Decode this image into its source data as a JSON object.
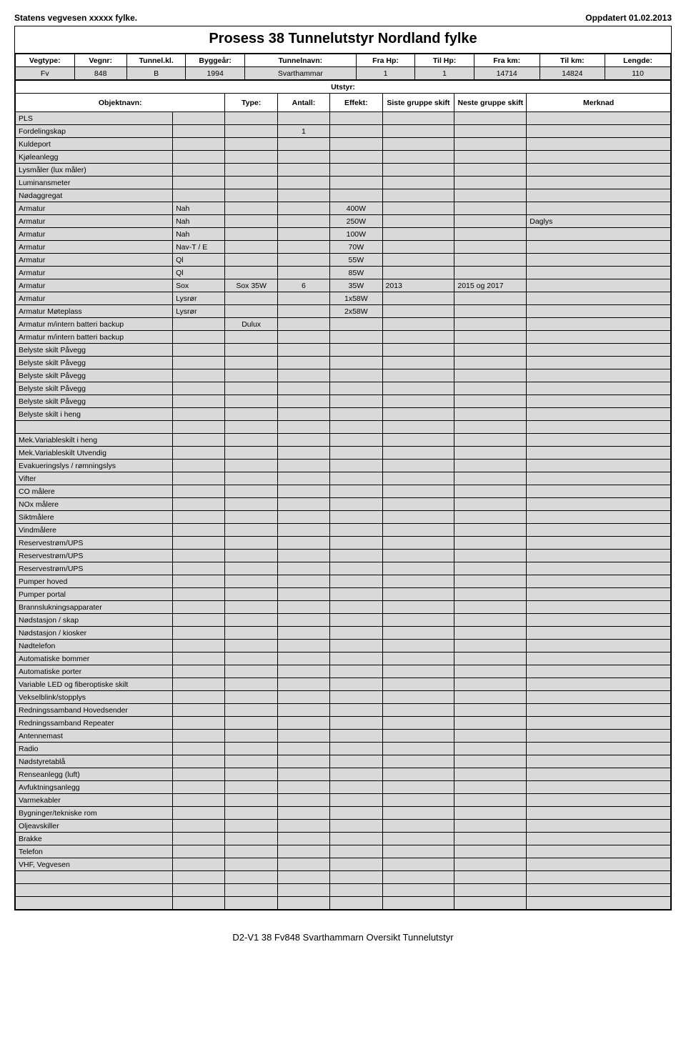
{
  "header_left": "Statens vegvesen xxxxx fylke.",
  "header_right": "Oppdatert 01.02.2013",
  "title": "Prosess 38 Tunnelutstyr Nordland fylke",
  "meta_headers": [
    "Vegtype:",
    "Vegnr:",
    "Tunnel.kl.",
    "Byggeår:",
    "Tunnelnavn:",
    "Fra Hp:",
    "Til Hp:",
    "Fra km:",
    "Til km:",
    "Lengde:"
  ],
  "meta_values": [
    "Fv",
    "848",
    "B",
    "1994",
    "Svarthammar",
    "1",
    "1",
    "14714",
    "14824",
    "110"
  ],
  "section_utstyr": "Utstyr:",
  "col_headers": [
    "Objektnavn:",
    "Type:",
    "Antall:",
    "Effekt:",
    "Siste gruppe skift",
    "Neste gruppe skift",
    "Merknad"
  ],
  "rows": [
    {
      "c": [
        "PLS",
        "",
        "",
        "",
        "",
        "",
        "",
        ""
      ]
    },
    {
      "c": [
        "Fordelingskap",
        "",
        "",
        "1",
        "",
        "",
        "",
        ""
      ]
    },
    {
      "c": [
        "Kuldeport",
        "",
        "",
        "",
        "",
        "",
        "",
        ""
      ]
    },
    {
      "c": [
        "Kjøleanlegg",
        "",
        "",
        "",
        "",
        "",
        "",
        ""
      ]
    },
    {
      "c": [
        "Lysmåler (lux måler)",
        "",
        "",
        "",
        "",
        "",
        "",
        ""
      ]
    },
    {
      "c": [
        "Luminansmeter",
        "",
        "",
        "",
        "",
        "",
        "",
        ""
      ]
    },
    {
      "c": [
        "Nødaggregat",
        "",
        "",
        "",
        "",
        "",
        "",
        ""
      ]
    },
    {
      "c": [
        "Armatur",
        "Nah",
        "",
        "",
        "400W",
        "",
        "",
        ""
      ]
    },
    {
      "c": [
        "Armatur",
        "Nah",
        "",
        "",
        "250W",
        "",
        "",
        "Daglys"
      ]
    },
    {
      "c": [
        "Armatur",
        "Nah",
        "",
        "",
        "100W",
        "",
        "",
        ""
      ]
    },
    {
      "c": [
        "Armatur",
        "Nav-T / E",
        "",
        "",
        "70W",
        "",
        "",
        ""
      ]
    },
    {
      "c": [
        "Armatur",
        "Ql",
        "",
        "",
        "55W",
        "",
        "",
        ""
      ]
    },
    {
      "c": [
        "Armatur",
        "Ql",
        "",
        "",
        "85W",
        "",
        "",
        ""
      ]
    },
    {
      "c": [
        "Armatur",
        "Sox",
        "Sox 35W",
        "6",
        "35W",
        "2013",
        "2015 og 2017",
        ""
      ]
    },
    {
      "c": [
        "Armatur",
        "Lysrør",
        "",
        "",
        "1x58W",
        "",
        "",
        ""
      ]
    },
    {
      "c": [
        "Armatur      Møteplass",
        "Lysrør",
        "",
        "",
        "2x58W",
        "",
        "",
        ""
      ]
    },
    {
      "c": [
        "Armatur m/intern batteri backup",
        "",
        "Dulux",
        "",
        "",
        "",
        "",
        ""
      ]
    },
    {
      "c": [
        "Armatur m/intern batteri backup",
        "",
        "",
        "",
        "",
        "",
        "",
        ""
      ]
    },
    {
      "c": [
        "Belyste skilt          Påvegg",
        "",
        "",
        "",
        "",
        "",
        "",
        ""
      ]
    },
    {
      "c": [
        "Belyste skilt          Påvegg",
        "",
        "",
        "",
        "",
        "",
        "",
        ""
      ]
    },
    {
      "c": [
        "Belyste skilt          Påvegg",
        "",
        "",
        "",
        "",
        "",
        "",
        ""
      ]
    },
    {
      "c": [
        "Belyste skilt          Påvegg",
        "",
        "",
        "",
        "",
        "",
        "",
        ""
      ]
    },
    {
      "c": [
        "Belyste skilt          Påvegg",
        "",
        "",
        "",
        "",
        "",
        "",
        ""
      ]
    },
    {
      "c": [
        "Belyste skilt          i heng",
        "",
        "",
        "",
        "",
        "",
        "",
        ""
      ]
    },
    {
      "c": [
        "",
        "",
        "",
        "",
        "",
        "",
        "",
        ""
      ]
    },
    {
      "c": [
        "Mek.Variableskilt     i heng",
        "",
        "",
        "",
        "",
        "",
        "",
        ""
      ]
    },
    {
      "c": [
        "Mek.Variableskilt     Utvendig",
        "",
        "",
        "",
        "",
        "",
        "",
        ""
      ]
    },
    {
      "c": [
        "Evakueringslys / rømningslys",
        "",
        "",
        "",
        "",
        "",
        "",
        ""
      ]
    },
    {
      "c": [
        "Vifter",
        "",
        "",
        "",
        "",
        "",
        "",
        ""
      ]
    },
    {
      "c": [
        "CO målere",
        "",
        "",
        "",
        "",
        "",
        "",
        ""
      ]
    },
    {
      "c": [
        "NOx målere",
        "",
        "",
        "",
        "",
        "",
        "",
        ""
      ]
    },
    {
      "c": [
        "Siktmålere",
        "",
        "",
        "",
        "",
        "",
        "",
        ""
      ]
    },
    {
      "c": [
        "Vindmålere",
        "",
        "",
        "",
        "",
        "",
        "",
        ""
      ]
    },
    {
      "c": [
        "Reservestrøm/UPS",
        "",
        "",
        "",
        "",
        "",
        "",
        ""
      ]
    },
    {
      "c": [
        "Reservestrøm/UPS",
        "",
        "",
        "",
        "",
        "",
        "",
        ""
      ]
    },
    {
      "c": [
        "Reservestrøm/UPS",
        "",
        "",
        "",
        "",
        "",
        "",
        ""
      ]
    },
    {
      "c": [
        "Pumper     hoved",
        "",
        "",
        "",
        "",
        "",
        "",
        ""
      ]
    },
    {
      "c": [
        "Pumper     portal",
        "",
        "",
        "",
        "",
        "",
        "",
        ""
      ]
    },
    {
      "c": [
        "Brannslukningsapparater",
        "",
        "",
        "",
        "",
        "",
        "",
        ""
      ]
    },
    {
      "c": [
        "Nødstasjon / skap",
        "",
        "",
        "",
        "",
        "",
        "",
        ""
      ]
    },
    {
      "c": [
        "Nødstasjon / kiosker",
        "",
        "",
        "",
        "",
        "",
        "",
        ""
      ]
    },
    {
      "c": [
        "Nødtelefon",
        "",
        "",
        "",
        "",
        "",
        "",
        ""
      ]
    },
    {
      "c": [
        "Automatiske bommer",
        "",
        "",
        "",
        "",
        "",
        "",
        ""
      ]
    },
    {
      "c": [
        "Automatiske porter",
        "",
        "",
        "",
        "",
        "",
        "",
        ""
      ]
    },
    {
      "c": [
        "Variable LED og fiberoptiske skilt",
        "",
        "",
        "",
        "",
        "",
        "",
        ""
      ]
    },
    {
      "c": [
        "Vekselblink/stopplys",
        "",
        "",
        "",
        "",
        "",
        "",
        ""
      ]
    },
    {
      "c": [
        "Redningssamband Hovedsender",
        "",
        "",
        "",
        "",
        "",
        "",
        ""
      ]
    },
    {
      "c": [
        "Redningssamband Repeater",
        "",
        "",
        "",
        "",
        "",
        "",
        ""
      ]
    },
    {
      "c": [
        "Antennemast",
        "",
        "",
        "",
        "",
        "",
        "",
        ""
      ]
    },
    {
      "c": [
        "Radio",
        "",
        "",
        "",
        "",
        "",
        "",
        ""
      ]
    },
    {
      "c": [
        "Nødstyretablå",
        "",
        "",
        "",
        "",
        "",
        "",
        ""
      ]
    },
    {
      "c": [
        "Renseanlegg (luft)",
        "",
        "",
        "",
        "",
        "",
        "",
        ""
      ]
    },
    {
      "c": [
        "Avfuktningsanlegg",
        "",
        "",
        "",
        "",
        "",
        "",
        ""
      ]
    },
    {
      "c": [
        "Varmekabler",
        "",
        "",
        "",
        "",
        "",
        "",
        ""
      ]
    },
    {
      "c": [
        "Bygninger/tekniske rom",
        "",
        "",
        "",
        "",
        "",
        "",
        ""
      ]
    },
    {
      "c": [
        "Oljeavskiller",
        "",
        "",
        "",
        "",
        "",
        "",
        ""
      ]
    },
    {
      "c": [
        "Brakke",
        "",
        "",
        "",
        "",
        "",
        "",
        ""
      ]
    },
    {
      "c": [
        "Telefon",
        "",
        "",
        "",
        "",
        "",
        "",
        ""
      ]
    },
    {
      "c": [
        "VHF, Vegvesen",
        "",
        "",
        "",
        "",
        "",
        "",
        ""
      ]
    },
    {
      "c": [
        "",
        "",
        "",
        "",
        "",
        "",
        "",
        ""
      ]
    },
    {
      "c": [
        "",
        "",
        "",
        "",
        "",
        "",
        "",
        ""
      ]
    },
    {
      "c": [
        "",
        "",
        "",
        "",
        "",
        "",
        "",
        ""
      ]
    }
  ],
  "footer": "D2-V1 38 Fv848 Svarthammarn Oversikt Tunnelutstyr",
  "colors": {
    "grid": "#000000",
    "fill": "#d9d9d9",
    "bg": "#ffffff"
  },
  "col_widths_pct": [
    24,
    8,
    8,
    8,
    8,
    11,
    11,
    22
  ]
}
